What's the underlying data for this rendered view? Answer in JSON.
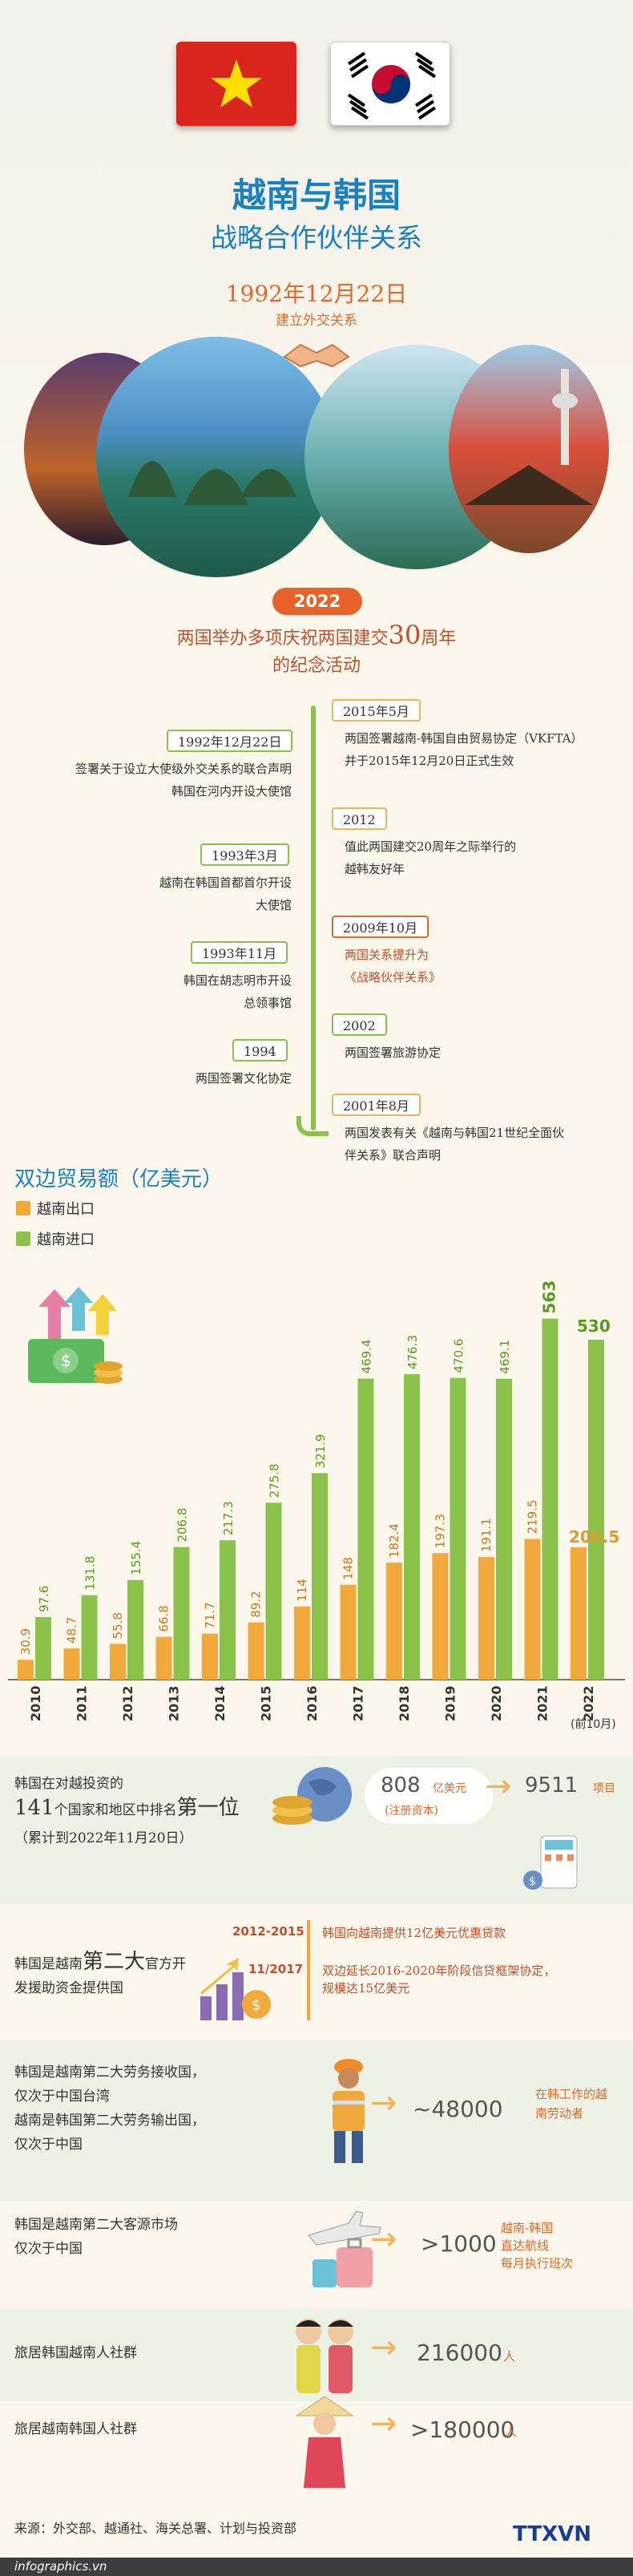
{
  "header": {
    "title_main": "越南与韩国",
    "title_sub": "战略合作伙伴关系",
    "date": "1992年12月22日",
    "date_caption": "建立外交关系"
  },
  "anniversary": {
    "year": "2022",
    "line1_pre": "两国举办多项庆祝两国建交",
    "line1_num": "30",
    "line1_post": "周年",
    "line2": "的纪念活动"
  },
  "timeline": {
    "left": [
      {
        "date": "1992年12月22日",
        "text": [
          "签署关于设立大使级外交关系的联合声明",
          "韩国在河内开设大使馆"
        ]
      },
      {
        "date": "1993年3月",
        "text": [
          "越南在韩国首都首尔开设",
          "大使馆"
        ]
      },
      {
        "date": "1993年11月",
        "text": [
          "韩国在胡志明市开设",
          "总领事馆"
        ]
      },
      {
        "date": "1994",
        "text": [
          "两国签署文化协定"
        ]
      }
    ],
    "right": [
      {
        "date": "2015年5月",
        "text": [
          "两国签署越南-韩国自由贸易协定（VKFTA）",
          "并于2015年12月20日正式生效"
        ]
      },
      {
        "date": "2012",
        "text": [
          "值此两国建交20周年之际举行的",
          "越韩友好年"
        ]
      },
      {
        "date": "2009年10月",
        "text": [
          "两国关系提升为",
          "《战略伙伴关系》"
        ]
      },
      {
        "date": "2002",
        "text": [
          "两国签署旅游协定"
        ]
      },
      {
        "date": "2001年8月",
        "text": [
          "两国发表有关《越南与韩国21世纪全面伙",
          "伴关系》联合声明"
        ]
      }
    ]
  },
  "chart_data": {
    "type": "bar",
    "title": "双边贸易额（亿美元）",
    "categories": [
      "2010",
      "2011",
      "2012",
      "2013",
      "2014",
      "2015",
      "2016",
      "2017",
      "2018",
      "2019",
      "2020",
      "2021",
      "2022"
    ],
    "category_note": "(前10月)",
    "series": [
      {
        "name": "越南出口",
        "values": [
          30.9,
          48.7,
          55.8,
          66.8,
          71.7,
          89.2,
          114,
          148,
          182.4,
          197.3,
          191.1,
          219.5,
          206.5
        ]
      },
      {
        "name": "越南进口",
        "values": [
          97.6,
          131.8,
          155.4,
          206.8,
          217.3,
          275.8,
          321.9,
          469.4,
          476.3,
          470.6,
          469.1,
          563,
          530
        ]
      }
    ],
    "ylim": [
      0,
      600
    ],
    "legend": "top-left",
    "grid": false,
    "colors": {
      "export": "#f2a93b",
      "import": "#8bc34a"
    }
  },
  "investment": {
    "line1": "韩国在对越投资的",
    "line2_num": "141",
    "line2_mid": "个国家和地区中排名",
    "line2_rank": "第一位",
    "line3": "（累计到2022年11月20日）",
    "capital_num": "808",
    "capital_unit": "亿美元",
    "capital_note": "(注册资本)",
    "projects_num": "9511",
    "projects_unit": "项目"
  },
  "oda": {
    "label_pre": "韩国是越南",
    "label_big": "第二大",
    "label_post": "官方开",
    "label_line2": "发援助资金提供国",
    "items": [
      {
        "period": "2012-2015",
        "text": "韩国向越南提供12亿美元优惠贷款"
      },
      {
        "period": "11/2017",
        "text": "双边延长2016-2020年阶段信贷框架协定，规模达15亿美元"
      }
    ]
  },
  "labor": {
    "lines": [
      "韩国是越南第二大劳务接收国，",
      "仅次于中国台湾",
      "越南是韩国第二大劳务输出国，",
      "仅次于中国"
    ],
    "num": "~48000",
    "note": [
      "在韩工作的越",
      "南劳动者"
    ]
  },
  "tourism": {
    "lines": [
      "韩国是越南第二大客源市场",
      "仅次于中国"
    ],
    "num": ">1000",
    "note": [
      "越南-韩国",
      "直达航线",
      "每月执行班次"
    ]
  },
  "vn_community": {
    "label": "旅居韩国越南人社群",
    "num": "216000",
    "unit": "人"
  },
  "kr_community": {
    "label": "旅居越南韩国人社群",
    "num": ">180000",
    "unit": "人"
  },
  "footer": {
    "source": "来源：外交部、越通社、海关总署、计划与投资部",
    "site": "infographics.vn",
    "logo": "TTXVN"
  }
}
